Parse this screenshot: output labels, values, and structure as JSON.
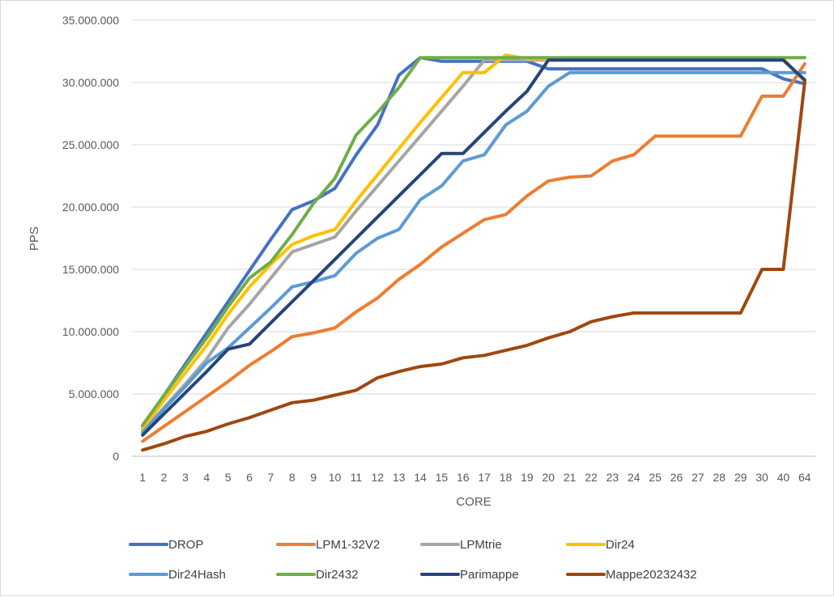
{
  "chart_data": {
    "type": "line",
    "title": "",
    "xlabel": "CORE",
    "ylabel": "PPS",
    "categories": [
      "1",
      "2",
      "3",
      "4",
      "5",
      "6",
      "7",
      "8",
      "9",
      "10",
      "11",
      "12",
      "13",
      "14",
      "15",
      "16",
      "17",
      "18",
      "19",
      "20",
      "21",
      "22",
      "23",
      "24",
      "25",
      "26",
      "27",
      "28",
      "29",
      "30",
      "40",
      "64"
    ],
    "ylim": [
      0,
      35000000
    ],
    "yticks": [
      "0",
      "5.000.000",
      "10.000.000",
      "15.000.000",
      "20.000.000",
      "25.000.000",
      "30.000.000",
      "35.000.000"
    ],
    "ytick_values": [
      0,
      5000000,
      10000000,
      15000000,
      20000000,
      25000000,
      30000000,
      35000000
    ],
    "grid": true,
    "legend_position": "bottom",
    "series": [
      {
        "name": "DROP",
        "color": "#4472C4",
        "values": [
          2400000,
          4900000,
          7400000,
          9900000,
          12400000,
          14900000,
          17400000,
          19800000,
          20500000,
          21500000,
          24200000,
          26600000,
          30600000,
          32000000,
          31700000,
          31700000,
          31700000,
          31700000,
          31700000,
          31100000,
          31100000,
          31100000,
          31100000,
          31100000,
          31100000,
          31100000,
          31100000,
          31100000,
          31100000,
          31100000,
          30300000,
          29900000
        ]
      },
      {
        "name": "LPM1-32V2",
        "color": "#ED7D31",
        "values": [
          1200000,
          2400000,
          3600000,
          4800000,
          6000000,
          7300000,
          8400000,
          9600000,
          9900000,
          10300000,
          11600000,
          12700000,
          14200000,
          15400000,
          16800000,
          17900000,
          19000000,
          19400000,
          20900000,
          22100000,
          22400000,
          22500000,
          23700000,
          24200000,
          25700000,
          25700000,
          25700000,
          25700000,
          25700000,
          28900000,
          28900000,
          31500000
        ]
      },
      {
        "name": "LPMtrie",
        "color": "#A5A5A5",
        "values": [
          2000000,
          3900000,
          5800000,
          7800000,
          10300000,
          12200000,
          14300000,
          16400000,
          17000000,
          17600000,
          19700000,
          21700000,
          23700000,
          25700000,
          27700000,
          29700000,
          31800000,
          31800000,
          31800000,
          31800000,
          31800000,
          31800000,
          31800000,
          31800000,
          31800000,
          31800000,
          31800000,
          31800000,
          31800000,
          31800000,
          31800000,
          30200000
        ]
      },
      {
        "name": "Dir24",
        "color": "#FFC000",
        "values": [
          2200000,
          4500000,
          6700000,
          8900000,
          11400000,
          13600000,
          15400000,
          17000000,
          17700000,
          18200000,
          20500000,
          22600000,
          24700000,
          26800000,
          28800000,
          30800000,
          30800000,
          32200000,
          31900000,
          31900000,
          31900000,
          31900000,
          31900000,
          31900000,
          31900000,
          31900000,
          31900000,
          31900000,
          31900000,
          31900000,
          31900000,
          30100000
        ]
      },
      {
        "name": "Dir24Hash",
        "color": "#5B9BD5",
        "values": [
          1900000,
          3800000,
          5600000,
          7500000,
          8700000,
          10300000,
          11900000,
          13600000,
          14000000,
          14500000,
          16300000,
          17500000,
          18200000,
          20600000,
          21700000,
          23700000,
          24200000,
          26600000,
          27700000,
          29700000,
          30800000,
          30800000,
          30800000,
          30800000,
          30800000,
          30800000,
          30800000,
          30800000,
          30800000,
          30800000,
          30800000,
          30800000
        ]
      },
      {
        "name": "Dir2432",
        "color": "#70AD47",
        "values": [
          2500000,
          4900000,
          7200000,
          9500000,
          12000000,
          14300000,
          15600000,
          17800000,
          20300000,
          22300000,
          25800000,
          27600000,
          29600000,
          32000000,
          32000000,
          32000000,
          32000000,
          32000000,
          32000000,
          32000000,
          32000000,
          32000000,
          32000000,
          32000000,
          32000000,
          32000000,
          32000000,
          32000000,
          32000000,
          32000000,
          32000000,
          32000000
        ]
      },
      {
        "name": "Parimappe",
        "color": "#264478",
        "values": [
          1700000,
          3400000,
          5100000,
          6800000,
          8600000,
          9000000,
          10700000,
          12400000,
          14100000,
          15800000,
          17500000,
          19200000,
          20900000,
          22600000,
          24300000,
          24300000,
          26000000,
          27700000,
          29300000,
          31800000,
          31800000,
          31800000,
          31800000,
          31800000,
          31800000,
          31800000,
          31800000,
          31800000,
          31800000,
          31800000,
          31800000,
          30200000
        ]
      },
      {
        "name": "Mappe20232432",
        "color": "#9E480E",
        "values": [
          500000,
          1000000,
          1600000,
          2000000,
          2600000,
          3100000,
          3700000,
          4300000,
          4500000,
          4900000,
          5300000,
          6300000,
          6800000,
          7200000,
          7400000,
          7900000,
          8100000,
          8500000,
          8900000,
          9500000,
          10000000,
          10800000,
          11200000,
          11500000,
          11500000,
          11500000,
          11500000,
          11500000,
          11500000,
          15000000,
          15000000,
          30000000
        ]
      }
    ]
  }
}
